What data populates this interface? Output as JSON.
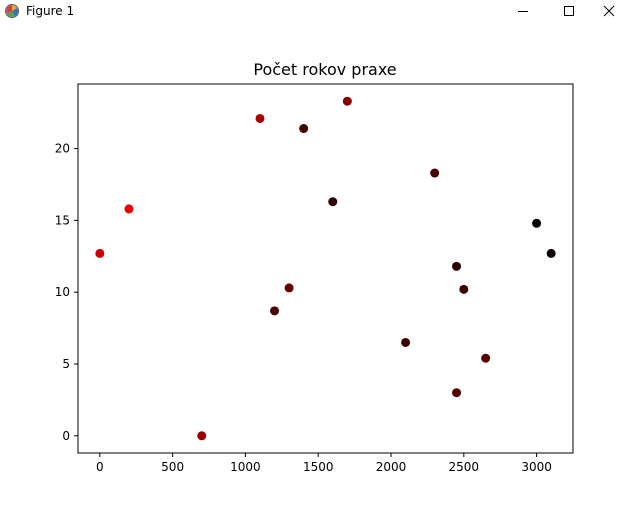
{
  "window": {
    "title": "Figure 1",
    "icons": {
      "app": "matplotlib-figure-icon",
      "minimize": "minimize-icon",
      "maximize": "maximize-icon",
      "close": "close-icon"
    }
  },
  "chart_data": {
    "type": "scatter",
    "title": "Počet rokov praxe",
    "xlabel": "",
    "ylabel": "",
    "xlim": [
      -150,
      3250
    ],
    "ylim": [
      -1.2,
      24.5
    ],
    "xticks": [
      0,
      500,
      1000,
      1500,
      2000,
      2500,
      3000
    ],
    "yticks": [
      0,
      5,
      10,
      15,
      20
    ],
    "grid": false,
    "points": [
      {
        "x": 0,
        "y": 12.7,
        "color": "#cc0000"
      },
      {
        "x": 200,
        "y": 15.8,
        "color": "#ee0000"
      },
      {
        "x": 700,
        "y": 0,
        "color": "#990000"
      },
      {
        "x": 1100,
        "y": 22.1,
        "color": "#aa0000"
      },
      {
        "x": 1200,
        "y": 8.7,
        "color": "#4a0000"
      },
      {
        "x": 1300,
        "y": 10.3,
        "color": "#660000"
      },
      {
        "x": 1400,
        "y": 21.4,
        "color": "#440000"
      },
      {
        "x": 1600,
        "y": 16.3,
        "color": "#2a0000"
      },
      {
        "x": 1700,
        "y": 23.3,
        "color": "#880000"
      },
      {
        "x": 2100,
        "y": 6.5,
        "color": "#3a0000"
      },
      {
        "x": 2300,
        "y": 18.3,
        "color": "#440000"
      },
      {
        "x": 2450,
        "y": 11.8,
        "color": "#2a0000"
      },
      {
        "x": 2450,
        "y": 3.0,
        "color": "#550000"
      },
      {
        "x": 2500,
        "y": 10.2,
        "color": "#3a0000"
      },
      {
        "x": 2650,
        "y": 5.4,
        "color": "#550000"
      },
      {
        "x": 3000,
        "y": 14.8,
        "color": "#000000"
      },
      {
        "x": 3100,
        "y": 12.7,
        "color": "#0a0000"
      }
    ]
  }
}
